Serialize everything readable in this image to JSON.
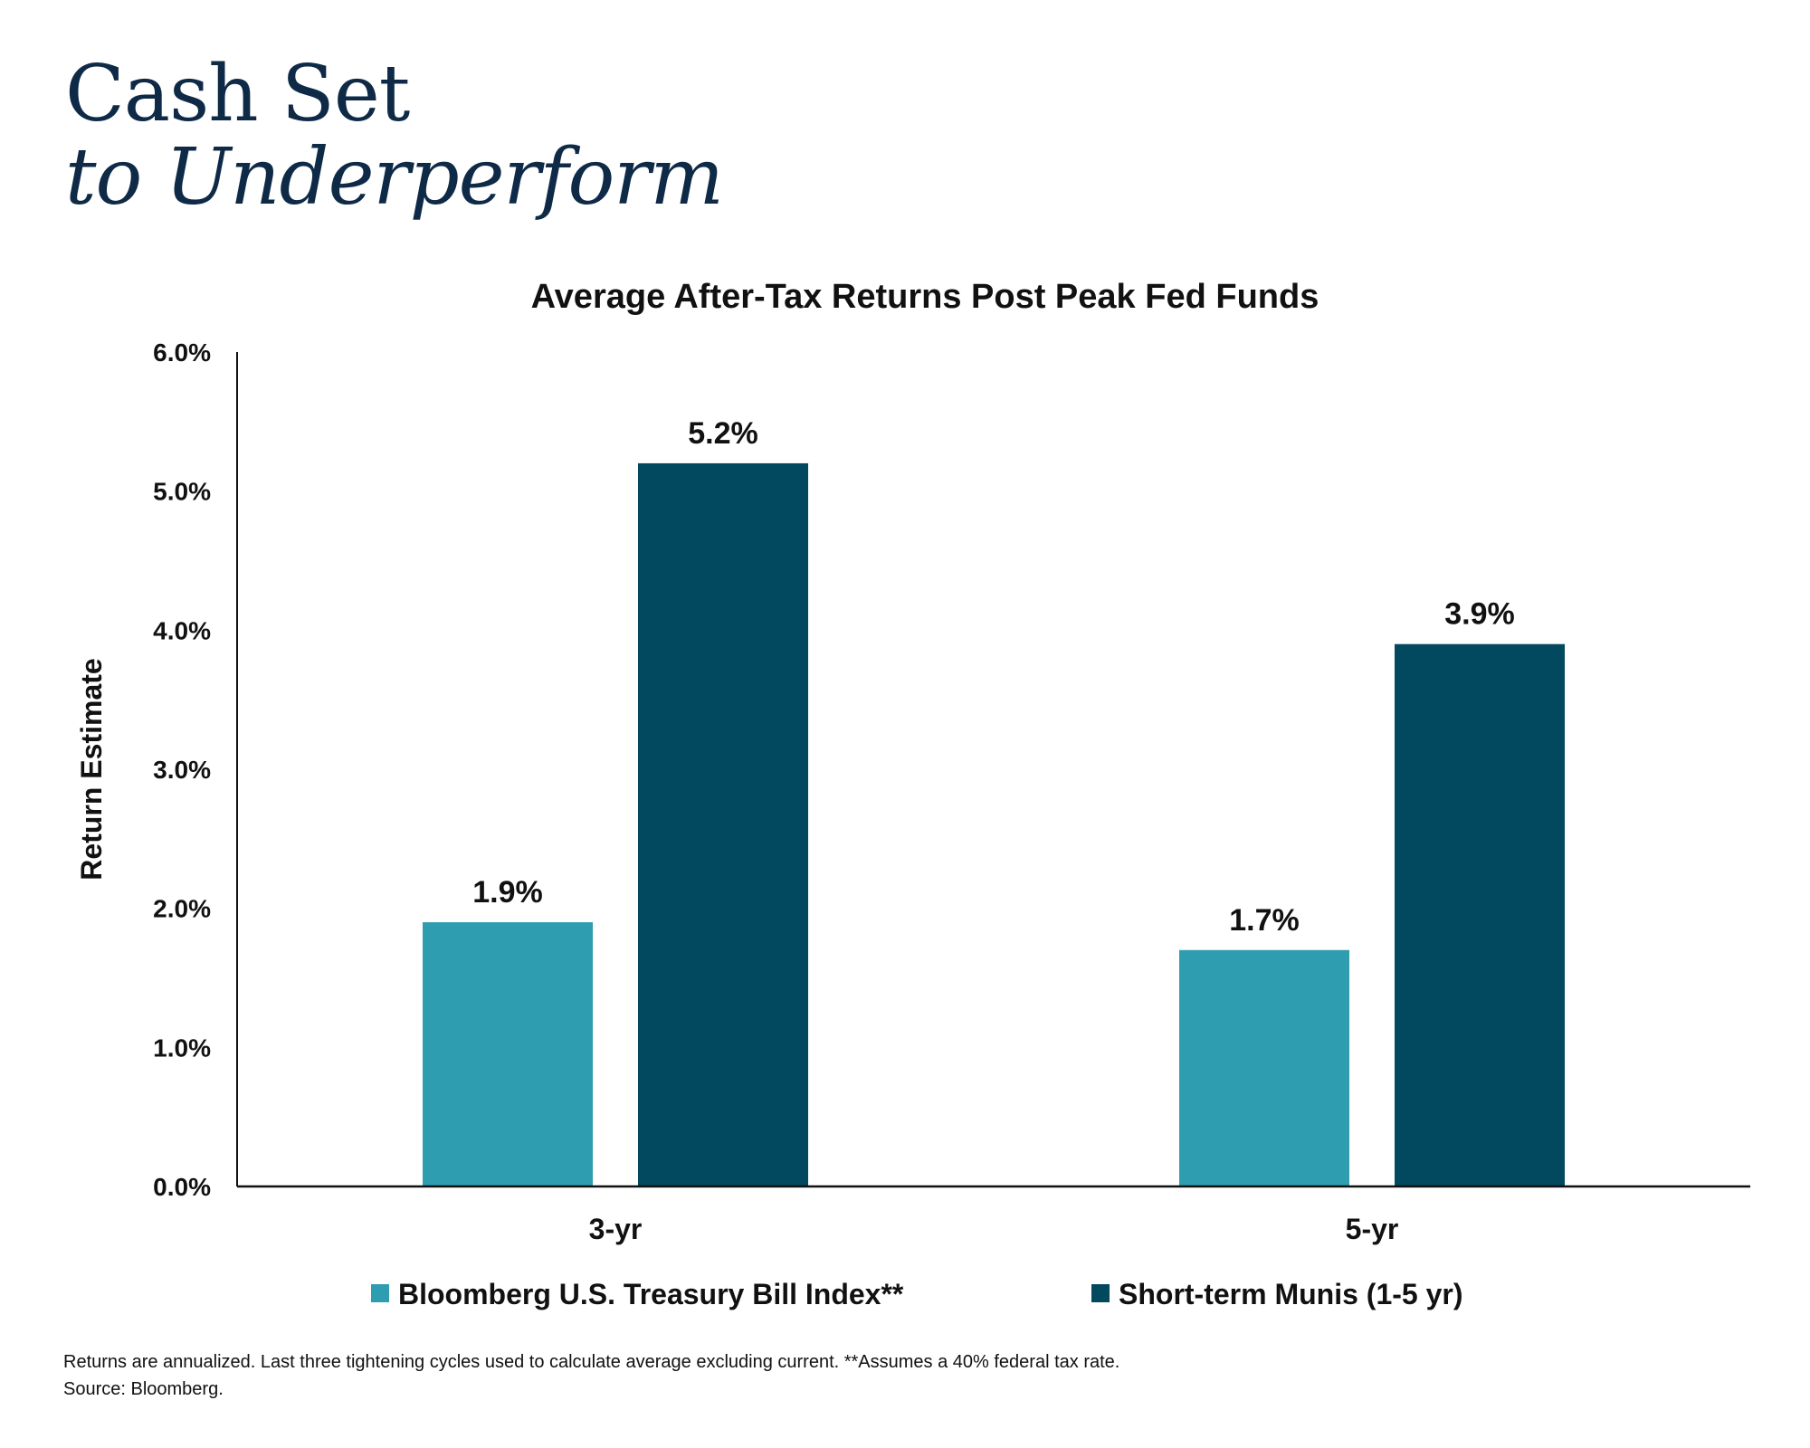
{
  "headline": {
    "line1": "Cash Set",
    "line2": "to Underperform"
  },
  "chart_data": {
    "type": "bar",
    "title": "Average After-Tax Returns Post Peak Fed Funds",
    "xlabel": "",
    "ylabel": "Return Estimate",
    "categories": [
      "3-yr",
      "5-yr"
    ],
    "series": [
      {
        "name": "Bloomberg U.S. Treasury Bill Index**",
        "values": [
          1.9,
          1.7
        ],
        "labels": [
          "1.9%",
          "1.7%"
        ],
        "color": "#2f9db0"
      },
      {
        "name": "Short-term Munis (1-5 yr)",
        "values": [
          5.2,
          3.9
        ],
        "labels": [
          "5.2%",
          "3.9%"
        ],
        "color": "#02485e"
      }
    ],
    "ylim": [
      0,
      6
    ],
    "yticks": [
      "0.0%",
      "1.0%",
      "2.0%",
      "3.0%",
      "4.0%",
      "5.0%",
      "6.0%"
    ],
    "grid": false,
    "legend": "bottom"
  },
  "footnote": {
    "line1": "Returns are annualized. Last three tightening cycles used to calculate average excluding current. **Assumes a 40% federal tax rate.",
    "line2": "Source: Bloomberg."
  }
}
